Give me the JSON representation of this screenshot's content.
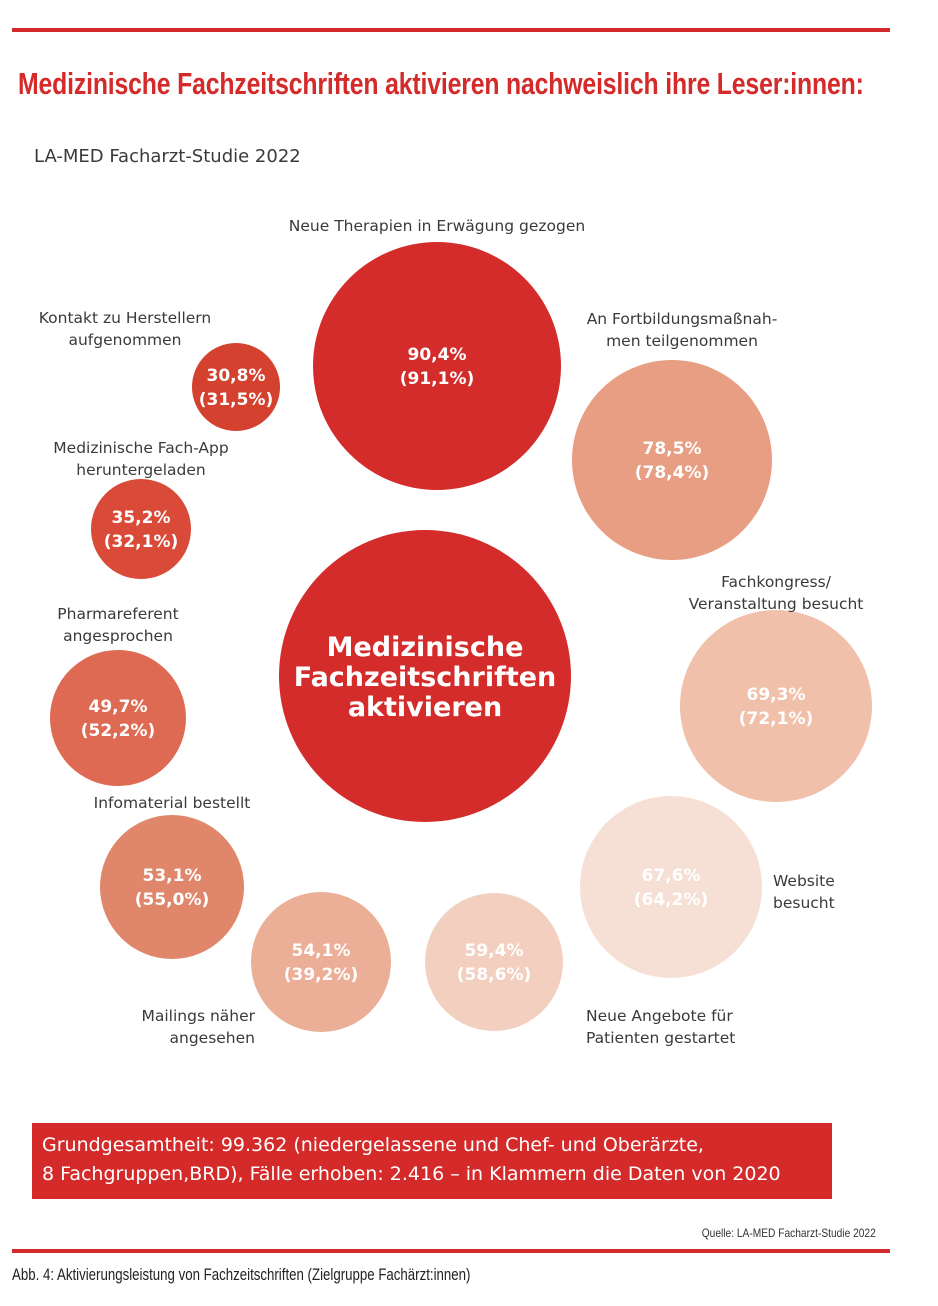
{
  "header": {
    "title": "Medizinische Fachzeitschriften aktivieren nachweislich ihre Leser:innen:",
    "subtitle": "LA-MED Facharzt-Studie 2022"
  },
  "chart_data": {
    "type": "bubble",
    "center_label": [
      "Medizinische",
      "Fachzeitschriften",
      "aktivieren"
    ],
    "series_years": [
      "2022",
      "2020"
    ],
    "items": [
      {
        "label": [
          "Neue Therapien in Erwägung gezogen"
        ],
        "value": 90.4,
        "value_prev": 91.1,
        "value_text": "90,4%",
        "prev_text": "(91,1%)",
        "color": "#d42b2b"
      },
      {
        "label": [
          "An Fortbildungsmaßnah-",
          "men teilgenommen"
        ],
        "value": 78.5,
        "value_prev": 78.4,
        "value_text": "78,5%",
        "prev_text": "(78,4%)",
        "color": "#e79e82"
      },
      {
        "label": [
          "Fachkongress/",
          "Veranstaltung besucht"
        ],
        "value": 69.3,
        "value_prev": 72.1,
        "value_text": "69,3%",
        "prev_text": "(72,1%)",
        "color": "#f0c0ab"
      },
      {
        "label": [
          "Website",
          "besucht"
        ],
        "value": 67.6,
        "value_prev": 64.2,
        "value_text": "67,6%",
        "prev_text": "(64,2%)",
        "color": "#f6e0d5"
      },
      {
        "label": [
          "Neue Angebote für",
          "Patienten gestartet"
        ],
        "value": 59.4,
        "value_prev": 58.6,
        "value_text": "59,4%",
        "prev_text": "(58,6%)",
        "color": "#f3cfc0"
      },
      {
        "label": [
          "Mailings näher",
          "angesehen"
        ],
        "value": 54.1,
        "value_prev": 39.2,
        "value_text": "54,1%",
        "prev_text": "(39,2%)",
        "color": "#ebae96"
      },
      {
        "label": [
          "Infomaterial bestellt"
        ],
        "value": 53.1,
        "value_prev": 55.0,
        "value_text": "53,1%",
        "prev_text": "(55,0%)",
        "color": "#e0866a"
      },
      {
        "label": [
          "Pharmareferent",
          "angesprochen"
        ],
        "value": 49.7,
        "value_prev": 52.2,
        "value_text": "49,7%",
        "prev_text": "(52,2%)",
        "color": "#df6a53"
      },
      {
        "label": [
          "Medizinische Fach-App",
          "heruntergeladen"
        ],
        "value": 35.2,
        "value_prev": 32.1,
        "value_text": "35,2%",
        "prev_text": "(32,1%)",
        "color": "#d94a38"
      },
      {
        "label": [
          "Kontakt zu Herstellern",
          "aufgenommen"
        ],
        "value": 30.8,
        "value_prev": 31.5,
        "value_text": "30,8%",
        "prev_text": "(31,5%)",
        "color": "#d4412f"
      }
    ]
  },
  "basis": {
    "line1": "Grundgesamtheit: 99.362 (niedergelassene und Chef- und Oberärzte,",
    "line2": "8 Fachgruppen,BRD), Fälle erhoben: 2.416 – in Klammern die Daten von 2020"
  },
  "source": "Quelle: LA-MED Facharzt-Studie 2022",
  "caption": "Abb. 4: Aktivierungsleistung von Fachzeitschriften (Zielgruppe Fachärzt:innen)",
  "colors": {
    "accent": "#d42a2a",
    "center_bubble": "#d42b2b"
  }
}
